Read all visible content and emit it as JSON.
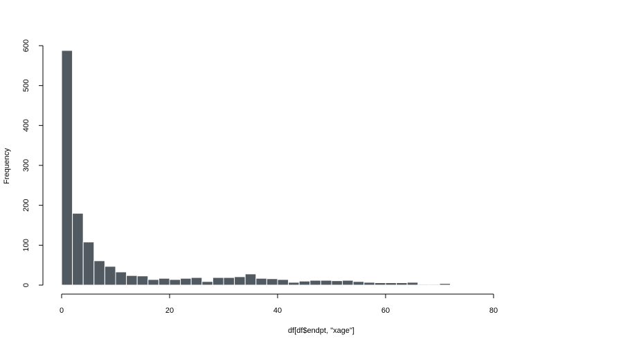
{
  "chart_data": {
    "type": "histogram",
    "x_label": "df[df$endpt, \"xage\"]",
    "y_label": "Frequency",
    "bins": [
      0,
      2,
      4,
      6,
      8,
      10,
      12,
      14,
      16,
      18,
      20,
      22,
      24,
      26,
      28,
      30,
      32,
      34,
      36,
      38,
      40,
      42,
      44,
      46,
      48,
      50,
      52,
      54,
      56,
      58,
      60,
      62,
      64,
      66,
      68,
      70,
      72
    ],
    "values": [
      588,
      180,
      108,
      61,
      47,
      33,
      24,
      23,
      14,
      17,
      14,
      17,
      19,
      9,
      19,
      19,
      21,
      28,
      17,
      16,
      14,
      7,
      10,
      12,
      12,
      11,
      12,
      9,
      7,
      6,
      6,
      6,
      7,
      2,
      2,
      4
    ],
    "color": "#525a61",
    "xlim": [
      0,
      80
    ],
    "xticks": [
      0,
      20,
      40,
      60,
      80
    ],
    "ylim": [
      0,
      600
    ],
    "yticks": [
      0,
      100,
      200,
      300,
      400,
      500,
      600
    ]
  }
}
